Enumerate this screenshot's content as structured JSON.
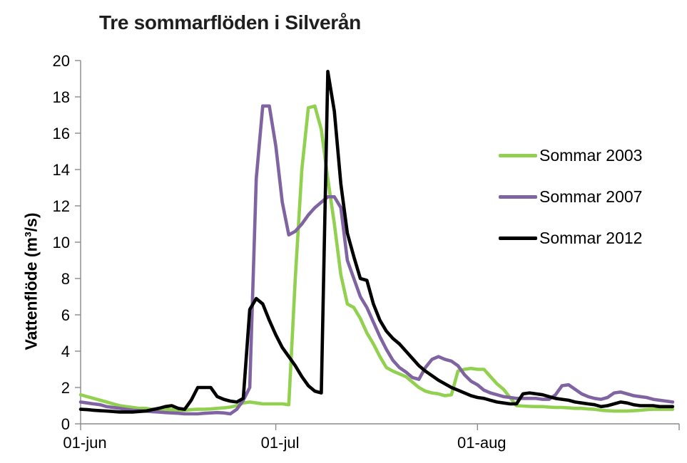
{
  "title": "Tre sommarflöden i Silverån",
  "y_axis": {
    "label": "Vattenflöde (m³/s)",
    "min": 0,
    "max": 20,
    "tick_values": [
      0,
      2,
      4,
      6,
      8,
      10,
      12,
      14,
      16,
      18,
      20
    ]
  },
  "x_axis": {
    "min_day": 0,
    "max_day": 92,
    "ticks": [
      {
        "day": 0,
        "label": "01-jun"
      },
      {
        "day": 30,
        "label": "01-jul"
      },
      {
        "day": 61,
        "label": "01-aug"
      },
      {
        "day": 92,
        "label": ""
      }
    ]
  },
  "legend": {
    "items": [
      {
        "label": "Sommar 2003",
        "color": "#92D050"
      },
      {
        "label": "Sommar 2007",
        "color": "#8064A2"
      },
      {
        "label": "Sommar 2012",
        "color": "#000000"
      }
    ]
  },
  "colors": {
    "axis": "#8a8a8a",
    "text": "#000000",
    "background": "#ffffff"
  },
  "chart_data": {
    "type": "line",
    "title": "Tre sommarflöden i Silverån",
    "xlabel": "",
    "ylabel": "Vattenflöde (m³/s)",
    "ylim": [
      0,
      20
    ],
    "grid": false,
    "legend_position": "right",
    "x_unit": "daily values, day 0 = 01-jun through day 91 = 31-aug",
    "x_tick_labels": [
      "01-jun",
      "01-jul",
      "01-aug"
    ],
    "series": [
      {
        "name": "Sommar 2003",
        "color": "#92D050",
        "values": [
          1.6,
          1.5,
          1.4,
          1.3,
          1.2,
          1.1,
          1.0,
          0.95,
          0.9,
          0.85,
          0.85,
          0.8,
          0.8,
          0.8,
          0.78,
          0.75,
          0.75,
          0.78,
          0.8,
          0.8,
          0.82,
          0.85,
          0.88,
          0.92,
          1.0,
          1.15,
          1.2,
          1.15,
          1.1,
          1.1,
          1.1,
          1.1,
          1.05,
          8.0,
          14.0,
          17.4,
          17.5,
          16.2,
          13.5,
          11.0,
          8.2,
          6.6,
          6.4,
          5.8,
          5.0,
          4.4,
          3.7,
          3.1,
          2.9,
          2.75,
          2.6,
          2.3,
          2.0,
          1.8,
          1.7,
          1.65,
          1.55,
          1.6,
          2.9,
          3.0,
          3.05,
          3.0,
          3.0,
          2.6,
          2.2,
          1.9,
          1.45,
          1.0,
          0.98,
          0.96,
          0.95,
          0.95,
          0.92,
          0.9,
          0.9,
          0.88,
          0.85,
          0.85,
          0.82,
          0.8,
          0.75,
          0.72,
          0.7,
          0.7,
          0.7,
          0.72,
          0.75,
          0.78,
          0.8,
          0.8,
          0.8,
          0.8
        ]
      },
      {
        "name": "Sommar 2007",
        "color": "#8064A2",
        "values": [
          1.2,
          1.15,
          1.1,
          1.05,
          0.95,
          0.9,
          0.85,
          0.8,
          0.75,
          0.72,
          0.7,
          0.67,
          0.65,
          0.62,
          0.6,
          0.58,
          0.55,
          0.55,
          0.55,
          0.58,
          0.6,
          0.62,
          0.6,
          0.55,
          0.8,
          1.3,
          2.0,
          13.5,
          17.5,
          17.5,
          15.3,
          12.2,
          10.4,
          10.6,
          11.0,
          11.5,
          11.9,
          12.2,
          12.5,
          12.5,
          11.9,
          9.0,
          8.0,
          7.0,
          6.4,
          5.6,
          4.8,
          4.1,
          3.5,
          3.1,
          2.85,
          2.55,
          2.45,
          3.1,
          3.55,
          3.7,
          3.55,
          3.45,
          3.2,
          2.7,
          2.35,
          2.15,
          1.85,
          1.7,
          1.6,
          1.5,
          1.45,
          1.4,
          1.4,
          1.4,
          1.4,
          1.35,
          1.35,
          1.6,
          2.1,
          2.15,
          1.9,
          1.65,
          1.5,
          1.4,
          1.35,
          1.45,
          1.7,
          1.75,
          1.65,
          1.55,
          1.5,
          1.45,
          1.35,
          1.3,
          1.25,
          1.2
        ]
      },
      {
        "name": "Sommar 2012",
        "color": "#000000",
        "values": [
          0.8,
          0.78,
          0.75,
          0.72,
          0.7,
          0.68,
          0.65,
          0.65,
          0.65,
          0.68,
          0.7,
          0.78,
          0.85,
          0.95,
          1.0,
          0.85,
          0.8,
          1.3,
          2.0,
          2.0,
          2.0,
          1.5,
          1.35,
          1.25,
          1.2,
          1.4,
          6.3,
          6.9,
          6.6,
          5.7,
          4.9,
          4.2,
          3.7,
          3.2,
          2.6,
          2.1,
          1.8,
          1.7,
          19.4,
          17.2,
          13.2,
          10.5,
          9.2,
          8.0,
          7.9,
          6.6,
          5.7,
          5.1,
          4.7,
          4.4,
          4.0,
          3.6,
          3.2,
          2.9,
          2.65,
          2.4,
          2.2,
          2.0,
          1.85,
          1.7,
          1.55,
          1.45,
          1.4,
          1.3,
          1.2,
          1.15,
          1.1,
          1.1,
          1.65,
          1.7,
          1.65,
          1.6,
          1.5,
          1.4,
          1.35,
          1.3,
          1.2,
          1.15,
          1.1,
          1.05,
          0.95,
          1.0,
          1.1,
          1.2,
          1.15,
          1.05,
          1.0,
          1.0,
          1.0,
          0.95,
          0.95,
          0.95
        ]
      }
    ]
  }
}
